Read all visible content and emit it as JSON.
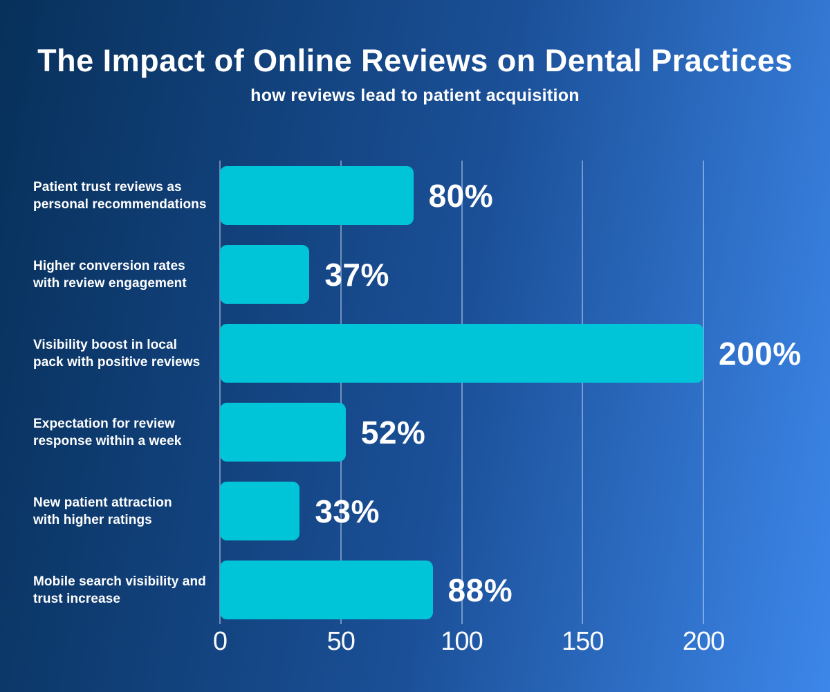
{
  "header": {
    "title": "The Impact of Online Reviews on Dental Practices",
    "subtitle": "how reviews lead to patient acquisition"
  },
  "colors": {
    "bg_left": "#07305A",
    "bg_mid": "#1B5098",
    "bg_right": "#3D87EA",
    "bar": "#00C4D8",
    "text": "#FFFFFF",
    "gridline": "rgba(223,236,255,0.45)"
  },
  "chart_data": {
    "type": "bar",
    "orientation": "horizontal",
    "title": "The Impact of Online Reviews on Dental Practices",
    "subtitle": "how reviews lead to patient acquisition",
    "categories": [
      "Patient trust reviews as\npersonal recommendations",
      "Higher conversion rates\nwith review engagement",
      "Visibility boost in local\npack with positive reviews",
      "Expectation for review\nresponse within a week",
      "New patient attraction\nwith higher ratings",
      "Mobile search visibility and\ntrust increase"
    ],
    "values": [
      80,
      37,
      200,
      52,
      33,
      88
    ],
    "value_labels": [
      "80%",
      "37%",
      "200%",
      "52%",
      "33%",
      "88%"
    ],
    "x_ticks": [
      0,
      50,
      100,
      150,
      200
    ],
    "xlim": [
      0,
      200
    ],
    "xlabel": "",
    "ylabel": "",
    "grid": "vertical",
    "legend": "none"
  }
}
